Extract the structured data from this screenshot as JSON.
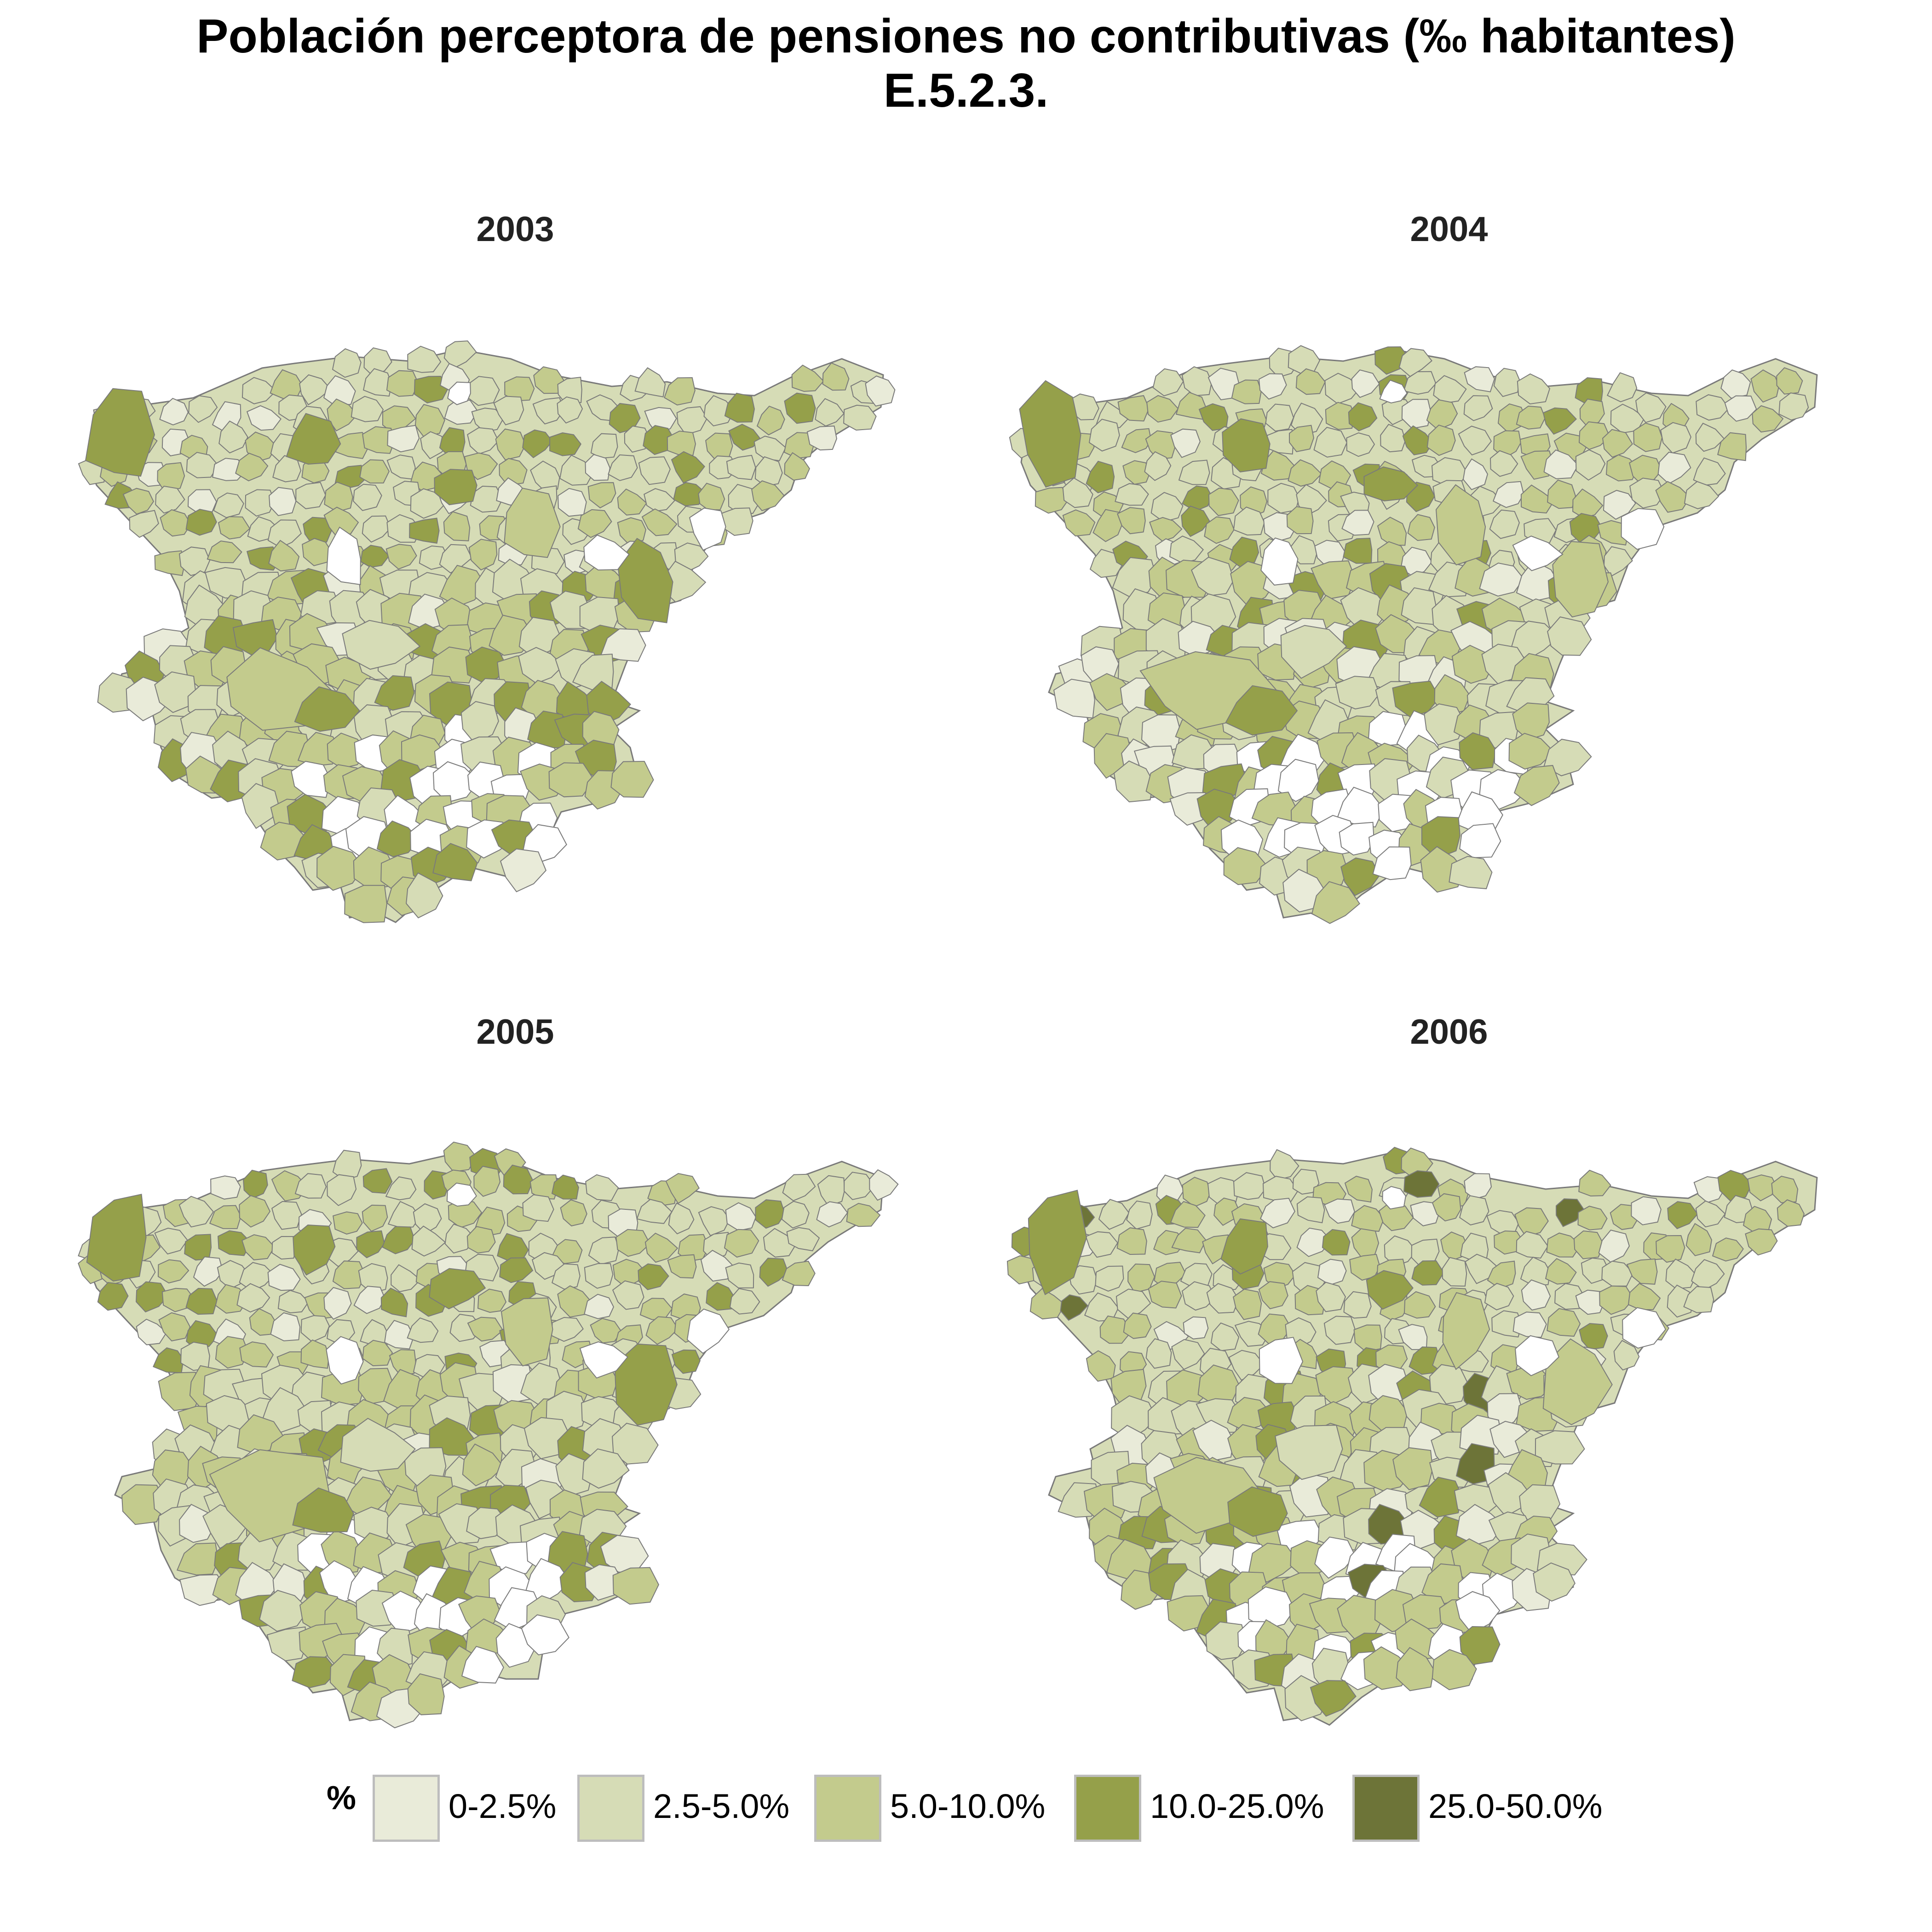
{
  "title": {
    "line1": "Población perceptora de pensiones no contributivas (‰ habitantes)",
    "line2": "E.5.2.3."
  },
  "colors": {
    "c0": "#e9ebd9",
    "c1": "#d6dcb6",
    "c2": "#c3cb8d",
    "c3": "#95a04a",
    "c4": "#6d7438",
    "border": "#7a7a7a",
    "empty": "#ffffff"
  },
  "legend": {
    "heading": "%",
    "items": [
      {
        "label": "0-2.5%",
        "color": "#e9ebd9"
      },
      {
        "label": "2.5-5.0%",
        "color": "#d6dcb6"
      },
      {
        "label": "5.0-10.0%",
        "color": "#c3cb8d"
      },
      {
        "label": "10.0-25.0%",
        "color": "#95a04a"
      },
      {
        "label": "25.0-50.0%",
        "color": "#6d7438"
      }
    ]
  },
  "panels": [
    {
      "year": "2003"
    },
    {
      "year": "2004"
    },
    {
      "year": "2005"
    },
    {
      "year": "2006"
    }
  ]
}
